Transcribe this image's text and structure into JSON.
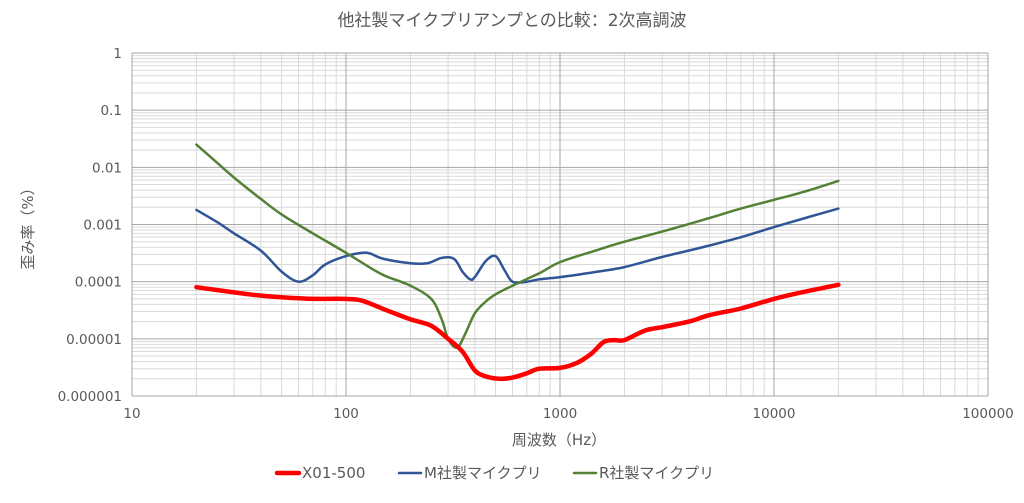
{
  "chart_data": {
    "type": "line",
    "title": "他社製マイクプリアンプとの比較：2次高調波",
    "xlabel": "周波数（Hz）",
    "ylabel": "歪み率（%）",
    "x_scale": "log",
    "y_scale": "log",
    "xlim": [
      10,
      100000
    ],
    "ylim": [
      1e-06,
      1
    ],
    "x_ticks": [
      "10",
      "100",
      "1000",
      "10000",
      "100000"
    ],
    "y_ticks": [
      "0.000001",
      "0.00001",
      "0.0001",
      "0.001",
      "0.01",
      "0.1",
      "1"
    ],
    "grid": true,
    "legend_position": "bottom",
    "series": [
      {
        "name": "X01-500",
        "color": "#ff0000",
        "points": [
          [
            20,
            8e-05
          ],
          [
            30,
            6.5e-05
          ],
          [
            40,
            5.7e-05
          ],
          [
            55,
            5.2e-05
          ],
          [
            70,
            5e-05
          ],
          [
            100,
            5e-05
          ],
          [
            120,
            4.6e-05
          ],
          [
            150,
            3.3e-05
          ],
          [
            200,
            2.2e-05
          ],
          [
            250,
            1.7e-05
          ],
          [
            300,
            1e-05
          ],
          [
            350,
            6e-06
          ],
          [
            400,
            2.8e-06
          ],
          [
            450,
            2.2e-06
          ],
          [
            520,
            2e-06
          ],
          [
            600,
            2.1e-06
          ],
          [
            700,
            2.5e-06
          ],
          [
            800,
            3e-06
          ],
          [
            1000,
            3.1e-06
          ],
          [
            1200,
            3.8e-06
          ],
          [
            1400,
            5.5e-06
          ],
          [
            1600,
            8.8e-06
          ],
          [
            1800,
            9.5e-06
          ],
          [
            2000,
            9.5e-06
          ],
          [
            2500,
            1.4e-05
          ],
          [
            3000,
            1.6e-05
          ],
          [
            4000,
            2e-05
          ],
          [
            5000,
            2.6e-05
          ],
          [
            7000,
            3.4e-05
          ],
          [
            10000,
            5e-05
          ],
          [
            14000,
            6.7e-05
          ],
          [
            20000,
            8.8e-05
          ]
        ]
      },
      {
        "name": "M社製マイクプリ",
        "color": "#2f5597",
        "points": [
          [
            20,
            0.0018
          ],
          [
            25,
            0.0011
          ],
          [
            30,
            0.0007
          ],
          [
            40,
            0.00035
          ],
          [
            50,
            0.00015
          ],
          [
            60,
            0.0001
          ],
          [
            70,
            0.00013
          ],
          [
            80,
            0.0002
          ],
          [
            100,
            0.00028
          ],
          [
            120,
            0.00032
          ],
          [
            130,
            0.00031
          ],
          [
            150,
            0.00025
          ],
          [
            200,
            0.00021
          ],
          [
            240,
            0.00021
          ],
          [
            280,
            0.00026
          ],
          [
            320,
            0.00025
          ],
          [
            350,
            0.00015
          ],
          [
            380,
            0.00011
          ],
          [
            400,
            0.00012
          ],
          [
            450,
            0.00023
          ],
          [
            500,
            0.00028
          ],
          [
            550,
            0.00016
          ],
          [
            600,
            0.0001
          ],
          [
            700,
            0.0001
          ],
          [
            800,
            0.00011
          ],
          [
            1000,
            0.00012
          ],
          [
            1500,
            0.00015
          ],
          [
            2000,
            0.00018
          ],
          [
            3000,
            0.00027
          ],
          [
            5000,
            0.00043
          ],
          [
            7000,
            0.0006
          ],
          [
            10000,
            0.0009
          ],
          [
            14000,
            0.0013
          ],
          [
            20000,
            0.0019
          ]
        ]
      },
      {
        "name": "R社製マイクプリ",
        "color": "#538135",
        "points": [
          [
            20,
            0.025
          ],
          [
            25,
            0.012
          ],
          [
            30,
            0.0066
          ],
          [
            40,
            0.0028
          ],
          [
            50,
            0.0015
          ],
          [
            70,
            0.0007
          ],
          [
            100,
            0.00032
          ],
          [
            120,
            0.00021
          ],
          [
            150,
            0.00013
          ],
          [
            200,
            8.5e-05
          ],
          [
            250,
            5e-05
          ],
          [
            280,
            2.2e-05
          ],
          [
            300,
            1e-05
          ],
          [
            330,
            7e-06
          ],
          [
            360,
            1.2e-05
          ],
          [
            400,
            2.8e-05
          ],
          [
            450,
            4.5e-05
          ],
          [
            500,
            6e-05
          ],
          [
            600,
            8.5e-05
          ],
          [
            800,
            0.00014
          ],
          [
            1000,
            0.00022
          ],
          [
            1500,
            0.00036
          ],
          [
            2000,
            0.0005
          ],
          [
            3000,
            0.00075
          ],
          [
            5000,
            0.0013
          ],
          [
            7000,
            0.0019
          ],
          [
            10000,
            0.0027
          ],
          [
            14000,
            0.0038
          ],
          [
            20000,
            0.0058
          ]
        ]
      }
    ]
  }
}
